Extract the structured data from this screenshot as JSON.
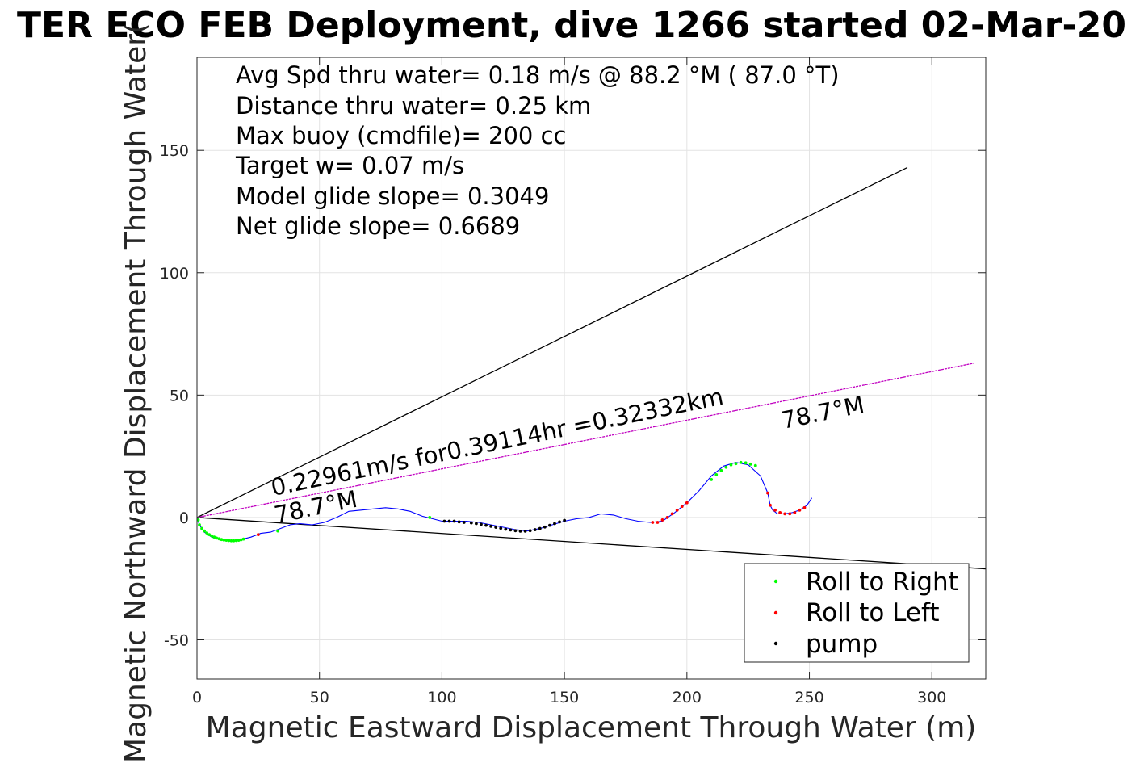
{
  "chart_data": {
    "type": "scatter",
    "title": "TER ECO FEB Deployment, dive 1266 started 02-Mar-20",
    "xlabel": "Magnetic Eastward Displacement Through Water (m)",
    "ylabel": "Magnetic Northward Displacement Through Water(",
    "xlim": [
      0,
      322
    ],
    "ylim": [
      -66,
      188
    ],
    "xticks": [
      0,
      50,
      100,
      150,
      200,
      250,
      300
    ],
    "yticks": [
      -50,
      0,
      50,
      100,
      150
    ],
    "xtick_labels": [
      "0",
      "50",
      "100",
      "150",
      "200",
      "250",
      "300"
    ],
    "ytick_labels": [
      "-50",
      "0",
      "50",
      "100",
      "150"
    ],
    "grid": true,
    "legend_position": "bottom-right",
    "info_lines": [
      "Avg Spd thru water=  0.18 m/s @  88.2 °M ( 87.0 °T)",
      "Distance thru water=  0.25 km",
      "Max buoy (cmdfile)= 200 cc",
      "Target w= 0.07 m/s",
      "Model glide slope= 0.3049",
      "Net glide slope= 0.6689"
    ],
    "annotations": {
      "current_text": "0.22961m/s for0.39114hr =0.32332km",
      "heading_left": "78.7°M",
      "heading_right": "78.7°M"
    },
    "reference_lines": [
      {
        "name": "upper",
        "color": "#000000",
        "x": [
          0,
          290
        ],
        "y": [
          0,
          143
        ]
      },
      {
        "name": "lower",
        "color": "#000000",
        "x": [
          0,
          322
        ],
        "y": [
          0,
          -21
        ]
      },
      {
        "name": "current",
        "color": "#c000c0",
        "x": [
          0,
          317
        ],
        "y": [
          0,
          63
        ]
      }
    ],
    "track": {
      "color": "#0000ff",
      "x": [
        0,
        1,
        3,
        6,
        10,
        14,
        18,
        22,
        26,
        30,
        34,
        38,
        42,
        47,
        52,
        57,
        62,
        67,
        72,
        77,
        82,
        87,
        92,
        96,
        100,
        105,
        110,
        115,
        120,
        125,
        130,
        135,
        140,
        145,
        150,
        155,
        160,
        165,
        170,
        175,
        180,
        185,
        190,
        195,
        200,
        205,
        210,
        215,
        220,
        225,
        230,
        233,
        234,
        235,
        237,
        240,
        243,
        246,
        249,
        251
      ],
      "y": [
        0,
        -3,
        -6,
        -8,
        -9,
        -9.5,
        -9,
        -8,
        -6.5,
        -6,
        -4.5,
        -3,
        -2.5,
        -3,
        -2,
        0,
        2.5,
        3,
        3.5,
        4,
        3.5,
        2.5,
        0.5,
        -0.5,
        -1.5,
        -1.5,
        -1.5,
        -2,
        -3,
        -4,
        -5,
        -5.5,
        -4.5,
        -3,
        -1.5,
        -0.5,
        0,
        1.5,
        1,
        -0.5,
        -1.5,
        -2,
        -1.5,
        2,
        6,
        11,
        17,
        21,
        22.5,
        21.5,
        17,
        10,
        5,
        3,
        1.5,
        1.5,
        2,
        3,
        5,
        8
      ]
    },
    "series": [
      {
        "name": "Roll to Right",
        "color": "#00ff00",
        "x": [
          0.5,
          1,
          2,
          3,
          4,
          5,
          6,
          7,
          8,
          9,
          10,
          11,
          12,
          13,
          14,
          15,
          16,
          17,
          18,
          19,
          33,
          95,
          210,
          212,
          214,
          216,
          218,
          220,
          222,
          224,
          226,
          228
        ],
        "y": [
          -1,
          -3,
          -4.5,
          -5.5,
          -6.3,
          -7,
          -7.5,
          -8,
          -8.4,
          -8.7,
          -9,
          -9.2,
          -9.3,
          -9.4,
          -9.5,
          -9.5,
          -9.4,
          -9.3,
          -9.1,
          -8.8,
          -5.5,
          0,
          15.5,
          17.5,
          19.2,
          20.5,
          21.5,
          22,
          22.5,
          22.3,
          21.8,
          21.2
        ]
      },
      {
        "name": "Roll to Left",
        "color": "#ff0000",
        "x": [
          25,
          186,
          188,
          190,
          192,
          194,
          196,
          198,
          200,
          233,
          234,
          236,
          238,
          240,
          242,
          244,
          246,
          248
        ],
        "y": [
          -7,
          -2,
          -2,
          -1,
          0,
          1.5,
          3,
          4.5,
          6,
          10,
          5,
          3,
          2,
          1.5,
          1.5,
          2,
          3,
          4
        ]
      },
      {
        "name": "pump",
        "color": "#000000",
        "x": [
          101,
          103,
          105,
          107,
          109,
          112,
          114,
          116,
          118,
          120,
          122,
          124,
          126,
          128,
          130,
          132,
          134,
          136,
          138,
          140,
          142,
          144,
          146,
          148,
          150
        ],
        "y": [
          -1.5,
          -1.5,
          -1.5,
          -1.8,
          -2,
          -2.2,
          -2.5,
          -2.8,
          -3.2,
          -3.6,
          -4,
          -4.4,
          -4.8,
          -5.1,
          -5.4,
          -5.6,
          -5.6,
          -5.4,
          -5,
          -4.5,
          -3.9,
          -3.2,
          -2.5,
          -1.8,
          -1.2
        ]
      }
    ]
  }
}
